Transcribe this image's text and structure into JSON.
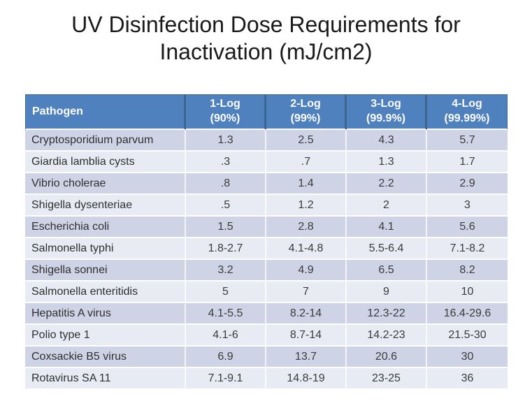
{
  "slide": {
    "title_line1": "UV Disinfection Dose Requirements for",
    "title_line2": "Inactivation (mJ/cm2)"
  },
  "table": {
    "columns": [
      {
        "label": "Pathogen",
        "sub": ""
      },
      {
        "label": "1-Log",
        "sub": "(90%)"
      },
      {
        "label": "2-Log",
        "sub": "(99%)"
      },
      {
        "label": "3-Log",
        "sub": "(99.9%)"
      },
      {
        "label": "4-Log",
        "sub": "(99.99%)"
      }
    ],
    "rows": [
      {
        "pathogen": "Cryptosporidium parvum",
        "values": [
          "1.3",
          "2.5",
          "4.3",
          "5.7"
        ]
      },
      {
        "pathogen": "Giardia lamblia cysts",
        "values": [
          ".3",
          ".7",
          "1.3",
          "1.7"
        ]
      },
      {
        "pathogen": "Vibrio cholerae",
        "values": [
          ".8",
          "1.4",
          "2.2",
          "2.9"
        ]
      },
      {
        "pathogen": "Shigella dysenteriae",
        "values": [
          ".5",
          "1.2",
          "2",
          "3"
        ]
      },
      {
        "pathogen": "Escherichia coli",
        "values": [
          "1.5",
          "2.8",
          "4.1",
          "5.6"
        ]
      },
      {
        "pathogen": "Salmonella typhi",
        "values": [
          "1.8-2.7",
          "4.1-4.8",
          "5.5-6.4",
          "7.1-8.2"
        ]
      },
      {
        "pathogen": "Shigella sonnei",
        "values": [
          "3.2",
          "4.9",
          "6.5",
          "8.2"
        ]
      },
      {
        "pathogen": "Salmonella enteritidis",
        "values": [
          "5",
          "7",
          "9",
          "10"
        ]
      },
      {
        "pathogen": "Hepatitis A virus",
        "values": [
          "4.1-5.5",
          "8.2-14",
          "12.3-22",
          "16.4-29.6"
        ]
      },
      {
        "pathogen": "Polio type 1",
        "values": [
          "4.1-6",
          "8.7-14",
          "14.2-23",
          "21.5-30"
        ]
      },
      {
        "pathogen": "Coxsackie B5 virus",
        "values": [
          "6.9",
          "13.7",
          "20.6",
          "30"
        ]
      },
      {
        "pathogen": "Rotavirus SA 11",
        "values": [
          "7.1-9.1",
          "14.8-19",
          "23-25",
          "36"
        ]
      }
    ]
  },
  "colors": {
    "header_bg": "#4E81BD",
    "header_separator": "#3D6591",
    "header_text": "#FFFFFF",
    "row_band_dark": "#CED4E6",
    "row_band_light": "#E9EBF4",
    "body_text": "#3B3B3B",
    "title_text": "#1A1A1A",
    "slide_bg": "#FFFFFF"
  }
}
